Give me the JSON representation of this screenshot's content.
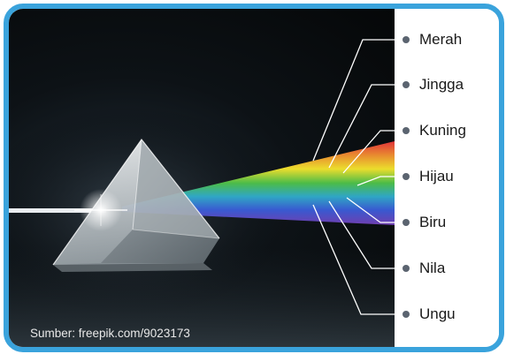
{
  "colors": {
    "frame_border": "#3aa3dc",
    "background": "#070a0c",
    "connector_line": "#ffffff",
    "dot": "#5b6470",
    "spectrum": [
      "#e8232a",
      "#f38a1f",
      "#f6e51c",
      "#3fbf3b",
      "#2a6fd6",
      "#4b2fa8",
      "#8a3fb5"
    ]
  },
  "spectrum_labels": [
    {
      "label": "Merah"
    },
    {
      "label": "Jingga"
    },
    {
      "label": "Kuning"
    },
    {
      "label": "Hijau"
    },
    {
      "label": "Biru"
    },
    {
      "label": "Nila"
    },
    {
      "label": "Ungu"
    }
  ],
  "source_credit": "Sumber: freepik.com/9023173"
}
